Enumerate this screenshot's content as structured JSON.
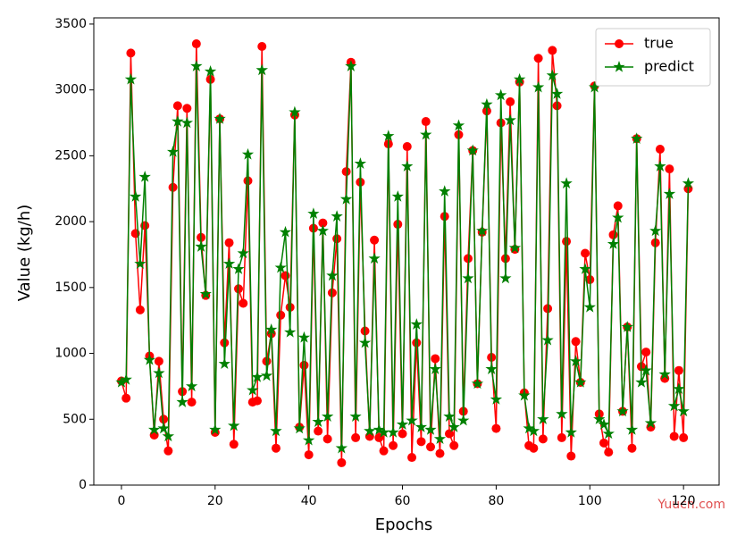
{
  "chart_data": {
    "type": "line",
    "xlabel": "Epochs",
    "ylabel": "Value (kg/h)",
    "watermark": "Yuucn.com",
    "x": [
      0,
      1,
      2,
      3,
      4,
      5,
      6,
      7,
      8,
      9,
      10,
      11,
      12,
      13,
      14,
      15,
      16,
      17,
      18,
      19,
      20,
      21,
      22,
      23,
      24,
      25,
      26,
      27,
      28,
      29,
      30,
      31,
      32,
      33,
      34,
      35,
      36,
      37,
      38,
      39,
      40,
      41,
      42,
      43,
      44,
      45,
      46,
      47,
      48,
      49,
      50,
      51,
      52,
      53,
      54,
      55,
      56,
      57,
      58,
      59,
      60,
      61,
      62,
      63,
      64,
      65,
      66,
      67,
      68,
      69,
      70,
      71,
      72,
      73,
      74,
      75,
      76,
      77,
      78,
      79,
      80,
      81,
      82,
      83,
      84,
      85,
      86,
      87,
      88,
      89,
      90,
      91,
      92,
      93,
      94,
      95,
      96,
      97,
      98,
      99,
      100,
      101,
      102,
      103,
      104,
      105,
      106,
      107,
      108,
      109,
      110,
      111,
      112,
      113,
      114,
      115,
      116,
      117,
      118,
      119,
      120,
      121
    ],
    "series": [
      {
        "name": "true",
        "color": "#ff0000",
        "marker": "circle",
        "values": [
          790,
          660,
          3280,
          1910,
          1330,
          1970,
          980,
          380,
          940,
          500,
          260,
          2260,
          2880,
          710,
          2860,
          630,
          3350,
          1880,
          1440,
          3080,
          400,
          2780,
          1080,
          1840,
          310,
          1490,
          1380,
          2310,
          630,
          640,
          3330,
          940,
          1150,
          280,
          1290,
          1590,
          1350,
          2810,
          440,
          910,
          230,
          1950,
          410,
          1990,
          350,
          1460,
          1870,
          170,
          2380,
          3210,
          360,
          2300,
          1170,
          370,
          1860,
          360,
          260,
          2590,
          300,
          1980,
          390,
          2570,
          210,
          1080,
          330,
          2760,
          290,
          960,
          240,
          2040,
          390,
          300,
          2660,
          560,
          1720,
          2540,
          770,
          1920,
          2840,
          970,
          430,
          2750,
          1720,
          2910,
          1790,
          3060,
          700,
          300,
          280,
          3240,
          350,
          1340,
          3300,
          2880,
          360,
          1850,
          220,
          1090,
          780,
          1760,
          1560,
          3030,
          540,
          320,
          250,
          1900,
          2120,
          560,
          1200,
          280,
          2630,
          900,
          1010,
          440,
          1840,
          2550,
          810,
          2400,
          370,
          870,
          360,
          2250
        ]
      },
      {
        "name": "predict",
        "color": "#008000",
        "marker": "star",
        "values": [
          780,
          800,
          3080,
          2190,
          1680,
          2340,
          950,
          420,
          850,
          430,
          370,
          2530,
          2760,
          630,
          2750,
          750,
          3180,
          1810,
          1450,
          3140,
          420,
          2780,
          920,
          1680,
          450,
          1640,
          1760,
          2510,
          720,
          820,
          3150,
          830,
          1180,
          410,
          1650,
          1920,
          1160,
          2830,
          430,
          1120,
          340,
          2060,
          480,
          1930,
          520,
          1590,
          2040,
          280,
          2170,
          3180,
          520,
          2440,
          1080,
          410,
          1720,
          420,
          400,
          2650,
          400,
          2190,
          460,
          2420,
          490,
          1220,
          440,
          2660,
          420,
          880,
          350,
          2230,
          520,
          440,
          2730,
          490,
          1570,
          2540,
          770,
          1930,
          2890,
          880,
          650,
          2960,
          1570,
          2770,
          1800,
          3080,
          680,
          430,
          410,
          3020,
          500,
          1100,
          3110,
          2970,
          540,
          2290,
          400,
          940,
          780,
          1640,
          1350,
          3020,
          500,
          460,
          390,
          1830,
          2030,
          560,
          1200,
          420,
          2630,
          780,
          870,
          470,
          1930,
          2420,
          840,
          2210,
          600,
          730,
          560,
          2290
        ]
      }
    ],
    "xlim": [
      -5.9,
      127.6
    ],
    "xticks": [
      0,
      20,
      40,
      60,
      80,
      100,
      120
    ],
    "ylim": [
      0,
      3547
    ],
    "yticks": [
      0,
      500,
      1000,
      1500,
      2000,
      2500,
      3000,
      3500
    ],
    "legend": "upper right",
    "grid": false
  }
}
